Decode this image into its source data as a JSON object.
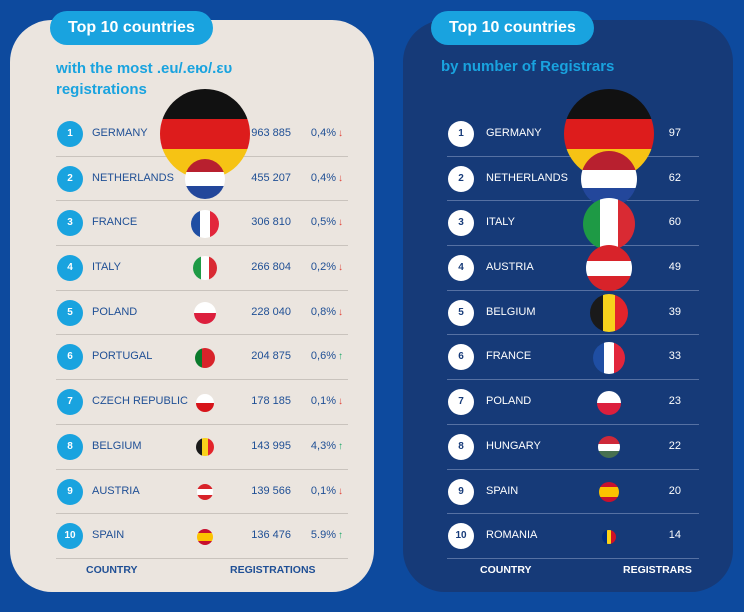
{
  "left_panel": {
    "tag": "Top 10 countries",
    "subtitle": "with the most .eu/.ею/.ευ registrations",
    "col_country": "COUNTRY",
    "col_value": "REGISTRATIONS"
  },
  "right_panel": {
    "tag": "Top 10 countries",
    "subtitle": "by number of Registrars",
    "col_country": "COUNTRY",
    "col_value": "REGISTRARS"
  },
  "chart_data": [
    {
      "type": "table",
      "columns": [
        "COUNTRY",
        "REGISTRATIONS"
      ],
      "rows": [
        {
          "rank": "1",
          "country": "GERMANY",
          "value": "963 885",
          "change": "0,4%",
          "trend": "down",
          "flag": "de"
        },
        {
          "rank": "2",
          "country": "NETHERLANDS",
          "value": "455 207",
          "change": "0,4%",
          "trend": "down",
          "flag": "nl"
        },
        {
          "rank": "3",
          "country": "FRANCE",
          "value": "306 810",
          "change": "0,5%",
          "trend": "down",
          "flag": "fr"
        },
        {
          "rank": "4",
          "country": "ITALY",
          "value": "266 804",
          "change": "0,2%",
          "trend": "down",
          "flag": "it"
        },
        {
          "rank": "5",
          "country": "POLAND",
          "value": "228 040",
          "change": "0,8%",
          "trend": "down",
          "flag": "pl"
        },
        {
          "rank": "6",
          "country": "PORTUGAL",
          "value": "204 875",
          "change": "0,6%",
          "trend": "up",
          "flag": "pt"
        },
        {
          "rank": "7",
          "country": "CZECH REPUBLIC",
          "value": "178 185",
          "change": "0,1%",
          "trend": "down",
          "flag": "cz"
        },
        {
          "rank": "8",
          "country": "BELGIUM",
          "value": "143 995",
          "change": "4,3%",
          "trend": "up",
          "flag": "be"
        },
        {
          "rank": "9",
          "country": "AUSTRIA",
          "value": "139 566",
          "change": "0,1%",
          "trend": "down",
          "flag": "at"
        },
        {
          "rank": "10",
          "country": "SPAIN",
          "value": "136 476",
          "change": "5.9%",
          "trend": "up",
          "flag": "es"
        }
      ]
    },
    {
      "type": "table",
      "columns": [
        "COUNTRY",
        "REGISTRARS"
      ],
      "rows": [
        {
          "rank": "1",
          "country": "GERMANY",
          "value": "97",
          "flag": "de"
        },
        {
          "rank": "2",
          "country": "NETHERLANDS",
          "value": "62",
          "flag": "nl"
        },
        {
          "rank": "3",
          "country": "ITALY",
          "value": "60",
          "flag": "it"
        },
        {
          "rank": "4",
          "country": "AUSTRIA",
          "value": "49",
          "flag": "at"
        },
        {
          "rank": "5",
          "country": "BELGIUM",
          "value": "39",
          "flag": "be"
        },
        {
          "rank": "6",
          "country": "FRANCE",
          "value": "33",
          "flag": "fr"
        },
        {
          "rank": "7",
          "country": "POLAND",
          "value": "23",
          "flag": "pl"
        },
        {
          "rank": "8",
          "country": "HUNGARY",
          "value": "22",
          "flag": "hu"
        },
        {
          "rank": "9",
          "country": "SPAIN",
          "value": "20",
          "flag": "es"
        },
        {
          "rank": "10",
          "country": "ROMANIA",
          "value": "14",
          "flag": "ro"
        }
      ]
    }
  ],
  "colors": {
    "accent": "#19a3df",
    "left_bg": "#ebe5df",
    "right_bg": "#163a78",
    "page_bg": "#0d4a9e",
    "text_dark": "#1f4f95",
    "down": "#e0443a",
    "up": "#1fa86a"
  }
}
